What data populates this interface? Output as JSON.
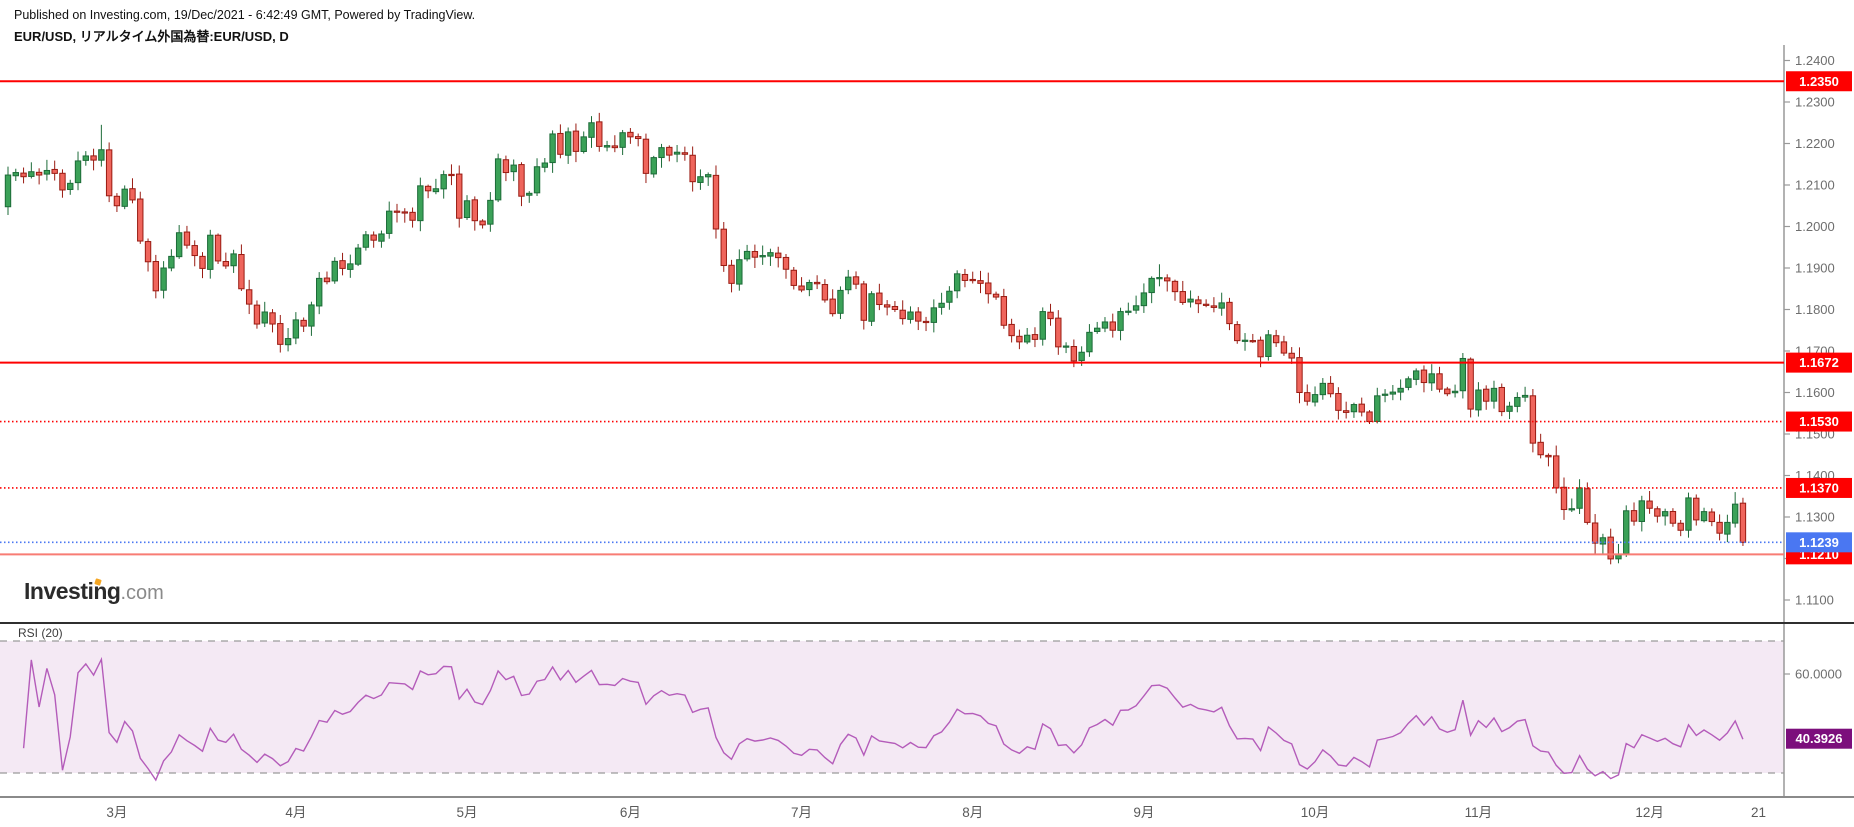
{
  "header": {
    "published_line": "Published on Investing.com, 19/Dec/2021 - 6:42:49 GMT, Powered by TradingView.",
    "instrument_line": "EUR/USD, リアルタイム外国為替:EUR/USD, D"
  },
  "logo": {
    "main": "Investing",
    "suffix": ".com"
  },
  "colors": {
    "up_fill": "#3ba158",
    "up_border": "#1c6b38",
    "down_fill": "#ef655c",
    "down_border": "#991b12",
    "level_red": "#fe0000",
    "level_red_light": "#f87c74",
    "current_blue": "#4a77f2",
    "rsi_line": "#b45cba",
    "rsi_band_fill": "#f4e9f4",
    "rsi_band_border": "#9a9a9a",
    "rsi_label_bg": "#7c0f7c",
    "axis_text": "#6e6e6e",
    "axis_line": "#999999",
    "separator": "#2f2f2f",
    "time_axis_line": "#8a8a8a"
  },
  "chart_data": {
    "type": "candlestick",
    "pair": "EUR/USD",
    "interval": "D",
    "y_axis": {
      "min": 1.11,
      "max": 1.24,
      "step": 0.01,
      "tick_labels": [
        "1.2400",
        "1.2300",
        "1.2200",
        "1.2100",
        "1.2000",
        "1.1900",
        "1.1800",
        "1.1700",
        "1.1600",
        "1.1500",
        "1.1400",
        "1.1300",
        "1.1200",
        "1.1100"
      ]
    },
    "x_axis": {
      "ticks": [
        {
          "label": "3月",
          "day": 14
        },
        {
          "label": "4月",
          "day": 37
        },
        {
          "label": "5月",
          "day": 59
        },
        {
          "label": "6月",
          "day": 80
        },
        {
          "label": "7月",
          "day": 102
        },
        {
          "label": "8月",
          "day": 124
        },
        {
          "label": "9月",
          "day": 146
        },
        {
          "label": "10月",
          "day": 168
        },
        {
          "label": "11月",
          "day": 189
        },
        {
          "label": "12月",
          "day": 211
        },
        {
          "label": "21",
          "day": 225
        }
      ]
    },
    "levels": [
      {
        "label": "1.2350",
        "value": 1.235,
        "line": "solid",
        "color": "#fe0000"
      },
      {
        "label": "1.1672",
        "value": 1.1672,
        "line": "solid",
        "color": "#fe0000"
      },
      {
        "label": "1.1530",
        "value": 1.153,
        "line": "dotted",
        "color": "#fe0000"
      },
      {
        "label": "1.1370",
        "value": 1.137,
        "line": "dotted",
        "color": "#fe0000"
      },
      {
        "label": "1.1210",
        "value": 1.121,
        "line": "solid-light",
        "color": "#f87c74"
      }
    ],
    "current_price": {
      "label": "1.1239",
      "value": 1.1239
    },
    "candles": {
      "first_open": 1.2047,
      "closes": [
        1.2124,
        1.213,
        1.212,
        1.2132,
        1.2124,
        1.2135,
        1.2128,
        1.2088,
        1.2104,
        1.2158,
        1.217,
        1.216,
        1.2185,
        1.2074,
        1.205,
        1.209,
        1.2064,
        1.1965,
        1.1915,
        1.1845,
        1.19,
        1.1928,
        1.1985,
        1.1955,
        1.193,
        1.1899,
        1.1979,
        1.1917,
        1.1905,
        1.1934,
        1.185,
        1.1813,
        1.1765,
        1.1794,
        1.1765,
        1.1716,
        1.173,
        1.1775,
        1.176,
        1.1811,
        1.1875,
        1.1867,
        1.1916,
        1.1899,
        1.191,
        1.1948,
        1.198,
        1.1967,
        1.1982,
        1.2037,
        1.2035,
        1.2033,
        1.2015,
        1.2098,
        1.2086,
        1.2091,
        1.2125,
        1.2124,
        1.202,
        1.2062,
        1.2014,
        1.2004,
        1.2063,
        1.2163,
        1.213,
        1.2148,
        1.2073,
        1.208,
        1.2144,
        1.2153,
        1.2223,
        1.2174,
        1.2228,
        1.2181,
        1.2216,
        1.225,
        1.2193,
        1.2195,
        1.219,
        1.2226,
        1.2216,
        1.2212,
        1.2128,
        1.2166,
        1.219,
        1.2172,
        1.2179,
        1.2174,
        1.2108,
        1.212,
        1.2125,
        1.1994,
        1.1906,
        1.1863,
        1.192,
        1.194,
        1.1926,
        1.193,
        1.1937,
        1.1925,
        1.1897,
        1.1858,
        1.1847,
        1.1865,
        1.1862,
        1.1823,
        1.179,
        1.1846,
        1.1878,
        1.1861,
        1.1774,
        1.1838,
        1.1812,
        1.1806,
        1.18,
        1.1778,
        1.1794,
        1.1772,
        1.177,
        1.1804,
        1.1815,
        1.1844,
        1.1886,
        1.187,
        1.1871,
        1.1863,
        1.1838,
        1.183,
        1.1762,
        1.1737,
        1.1722,
        1.1738,
        1.1728,
        1.1795,
        1.1778,
        1.171,
        1.1712,
        1.1676,
        1.1697,
        1.1745,
        1.1755,
        1.177,
        1.175,
        1.1795,
        1.1796,
        1.1809,
        1.184,
        1.1875,
        1.1877,
        1.1869,
        1.1843,
        1.1817,
        1.1825,
        1.1814,
        1.181,
        1.1805,
        1.1816,
        1.1766,
        1.1725,
        1.1726,
        1.1724,
        1.1686,
        1.1739,
        1.172,
        1.1695,
        1.1683,
        1.16,
        1.1579,
        1.1595,
        1.1622,
        1.1597,
        1.1557,
        1.1552,
        1.1571,
        1.1553,
        1.153,
        1.1592,
        1.1596,
        1.1601,
        1.161,
        1.1633,
        1.1652,
        1.1624,
        1.1645,
        1.1608,
        1.1597,
        1.1603,
        1.1682,
        1.156,
        1.1606,
        1.1579,
        1.161,
        1.1554,
        1.1567,
        1.1588,
        1.1593,
        1.1478,
        1.145,
        1.1445,
        1.137,
        1.1318,
        1.132,
        1.137,
        1.1287,
        1.1237,
        1.125,
        1.1199,
        1.121,
        1.1315,
        1.129,
        1.1339,
        1.1321,
        1.1302,
        1.1313,
        1.1285,
        1.1268,
        1.1346,
        1.1293,
        1.1313,
        1.1289,
        1.1261,
        1.1287,
        1.1331,
        1.1239
      ],
      "wick_overrides": {
        "12": {
          "high": 1.2245
        },
        "75": {
          "high": 1.2266
        },
        "138": {
          "low": 1.1664
        },
        "148": {
          "high": 1.1909
        },
        "175": {
          "low": 1.1524
        },
        "206": {
          "low": 1.1186
        },
        "222": {
          "high": 1.136
        }
      }
    },
    "rsi": {
      "title": "RSI (20)",
      "period": 20,
      "bands": {
        "upper": 70,
        "lower": 30
      },
      "axis_label": "60.0000",
      "axis_label_value": 60,
      "value_label": "40.3926",
      "value": 40.3926
    }
  }
}
